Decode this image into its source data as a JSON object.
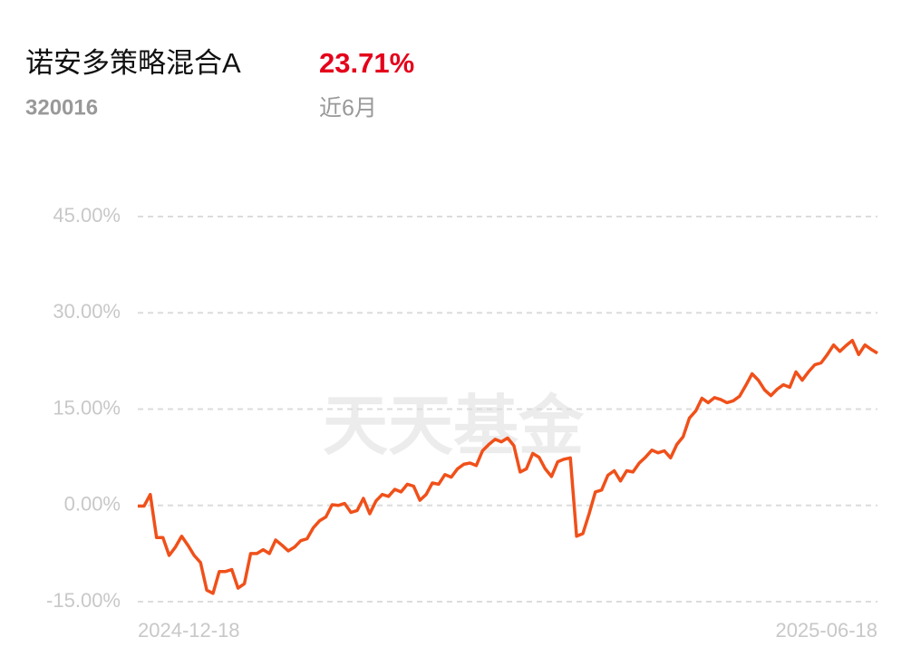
{
  "header": {
    "title": "诺安多策略混合A",
    "code": "320016",
    "return": "23.71%",
    "period": "近6月"
  },
  "chart_data": {
    "type": "line",
    "watermark": "天天基金",
    "categories": [
      "2024-12-18",
      null,
      null,
      null,
      null,
      null,
      null,
      null,
      null,
      null,
      null,
      null,
      null,
      null,
      null,
      null,
      null,
      null,
      null,
      null,
      null,
      null,
      null,
      null,
      null,
      null,
      null,
      null,
      null,
      null,
      null,
      null,
      null,
      null,
      null,
      null,
      null,
      null,
      null,
      null,
      null,
      null,
      null,
      null,
      null,
      null,
      null,
      null,
      null,
      null,
      null,
      null,
      null,
      null,
      null,
      null,
      null,
      null,
      null,
      null,
      null,
      null,
      null,
      null,
      null,
      null,
      null,
      null,
      null,
      null,
      null,
      null,
      null,
      null,
      null,
      null,
      null,
      null,
      null,
      null,
      null,
      null,
      null,
      null,
      null,
      null,
      null,
      null,
      null,
      null,
      null,
      null,
      null,
      null,
      null,
      null,
      null,
      null,
      null,
      null,
      null,
      null,
      null,
      null,
      null,
      null,
      null,
      null,
      null,
      null,
      null,
      null,
      null,
      null,
      null,
      null,
      null,
      null,
      "2025-06-18"
    ],
    "series": [
      {
        "color": "#f0501a",
        "values": [
          -0.1,
          -0.1,
          1.7,
          -5.0,
          -5.0,
          -7.8,
          -6.5,
          -4.8,
          -6.2,
          -7.8,
          -8.9,
          -13.2,
          -13.7,
          -10.3,
          -10.3,
          -10.0,
          -12.9,
          -12.2,
          -7.5,
          -7.5,
          -6.9,
          -7.5,
          -5.4,
          -6.2,
          -7.1,
          -6.5,
          -5.5,
          -5.2,
          -3.5,
          -2.4,
          -1.8,
          0.1,
          0.0,
          0.3,
          -1.1,
          -0.8,
          1.1,
          -1.3,
          0.7,
          1.7,
          1.4,
          2.5,
          2.1,
          3.3,
          3.0,
          0.8,
          1.7,
          3.5,
          3.3,
          4.8,
          4.4,
          5.7,
          6.4,
          6.6,
          6.2,
          8.5,
          9.5,
          10.3,
          9.9,
          10.5,
          9.3,
          5.2,
          5.7,
          8.1,
          7.5,
          5.7,
          4.5,
          6.8,
          7.2,
          7.4,
          -4.8,
          -4.4,
          -1.3,
          2.1,
          2.4,
          4.7,
          5.4,
          3.8,
          5.4,
          5.2,
          6.6,
          7.5,
          8.6,
          8.2,
          8.5,
          7.4,
          9.5,
          10.7,
          13.6,
          14.7,
          16.7,
          16.0,
          16.8,
          16.5,
          16.0,
          16.3,
          17.0,
          18.7,
          20.5,
          19.5,
          18.0,
          17.1,
          18.1,
          18.8,
          18.4,
          20.8,
          19.5,
          20.8,
          21.9,
          22.2,
          23.5,
          25.0,
          24.0,
          24.9,
          25.7,
          23.5,
          25.0,
          24.3,
          23.71
        ]
      }
    ],
    "ylim": [
      -15,
      45
    ],
    "yticks": [
      {
        "value": -15,
        "label": "-15.00%"
      },
      {
        "value": 0,
        "label": "0.00%"
      },
      {
        "value": 15,
        "label": "15.00%"
      },
      {
        "value": 30,
        "label": "30.00%"
      },
      {
        "value": 45,
        "label": "45.00%"
      }
    ],
    "grid": true
  }
}
